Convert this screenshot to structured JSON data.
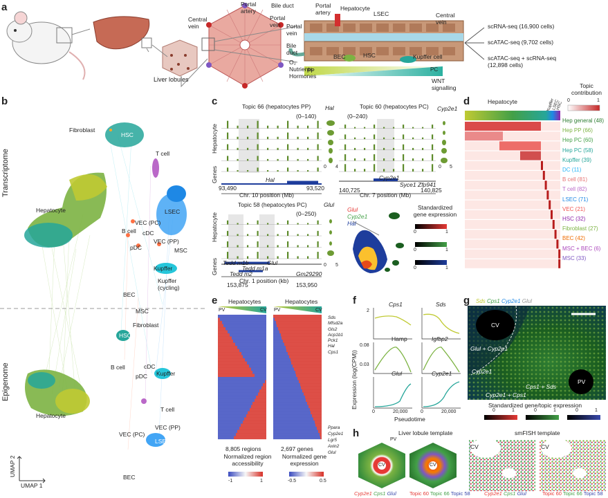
{
  "panels": {
    "a": "a",
    "b": "b",
    "c": "c",
    "d": "d",
    "e": "e",
    "f": "f",
    "g": "g",
    "h": "h"
  },
  "a": {
    "liver_lobules": "Liver lobules",
    "central_vein": "Central vein",
    "portal_artery": "Portal artery",
    "bile_duct": "Bile duct",
    "portal_vein": "Portal vein",
    "s_hepatocyte": "Hepatocyte",
    "s_portal_artery": "Portal artery",
    "s_lsec": "LSEC",
    "s_central_vein": "Central vein",
    "s_portal_vein": "Portal vein",
    "s_bile_duct": "Bile duct",
    "s_bec": "BEC",
    "s_hsc": "HSC",
    "s_kupffer": "Kupffer cell",
    "o2": "O₂",
    "nutrients": "Nutrients",
    "hormones": "Hormones",
    "wnt": "WNT signalling",
    "pp": "PP",
    "pc": "PC",
    "assays": [
      "scRNA-seq (16,900 cells)",
      "scATAC-seq (9,702 cells)",
      "scATAC-seq + scRNA-seq (12,898 cells)"
    ]
  },
  "b": {
    "transcriptome": "Transcriptome",
    "epigenome": "Epigenome",
    "umap1": "UMAP 1",
    "umap2": "UMAP 2",
    "labels_top": [
      "Fibroblast",
      "HSC",
      "T cell",
      "Hepatocyte",
      "LSEC",
      "VEC (PC)",
      "B cell",
      "cDC",
      "VEC (PP)",
      "pDC",
      "MSC",
      "Kupffer",
      "Kupffer (cycling)"
    ],
    "labels_bottom": [
      "BEC",
      "MSC",
      "Fibroblast",
      "HSC",
      "B cell",
      "cDC",
      "Kupffer",
      "pDC",
      "Hepatocyte",
      "T cell",
      "VEC (PP)",
      "VEC (PC)",
      "LSEC",
      "BEC"
    ]
  },
  "c": {
    "t66": "Topic 66 (hepatocytes PP)",
    "t60": "Topic 60 (hepatocytes PC)",
    "t58": "Topic 58 (hepatocytes PC)",
    "r66": "(0–140)",
    "r60": "(0–240)",
    "r58": "(0–250)",
    "g66": "Hal",
    "g60": "Cyp2e1",
    "g58": "Glul",
    "hep": "Hepatocyte",
    "genes": "Genes",
    "chr10": "Chr. 10 position (Mb)",
    "chr7": "Chr. 7 position (Mb)",
    "chr1": "Chr. 1 position (kb)",
    "ticks10": [
      "93,490",
      "93,520"
    ],
    "ticks7": [
      "140,725",
      "140,825"
    ],
    "ticks1": [
      "153,875",
      "153,950"
    ],
    "genes7": [
      "Cyp2e1",
      "Syce1",
      "Zfp941"
    ],
    "genes1": [
      "Tedd m1b",
      "Tedd m1a",
      "Glul",
      "Tedd m2",
      "Gm29290"
    ],
    "vio_ticks": [
      "0",
      "4",
      "0",
      "5",
      "0",
      "5"
    ],
    "legend_genes": [
      "Glul",
      "Cyp2e1",
      "Hal"
    ],
    "std_expr": "Standardized gene expression",
    "cb": [
      "0",
      "1",
      "0",
      "1",
      "0",
      "1"
    ]
  },
  "d": {
    "hepatocyte": "Hepatocyte",
    "topic_contribution": "Topic contribution",
    "cb": [
      "0",
      "1"
    ],
    "col_labels": [
      "Kupffer",
      "LSEC",
      "HSC"
    ],
    "rows": [
      {
        "label": "Hep general (48)",
        "color": "#2e7d32"
      },
      {
        "label": "Hep PP (66)",
        "color": "#7cb342"
      },
      {
        "label": "Hep PC (60)",
        "color": "#43a047"
      },
      {
        "label": "Hep PC (58)",
        "color": "#26a69a"
      },
      {
        "label": "Kupffer (39)",
        "color": "#26a69a"
      },
      {
        "label": "DC (11)",
        "color": "#29b6f6"
      },
      {
        "label": "B cell (81)",
        "color": "#e57373"
      },
      {
        "label": "T cell (82)",
        "color": "#ba68c8"
      },
      {
        "label": "LSEC (71)",
        "color": "#1e88e5"
      },
      {
        "label": "VEC (21)",
        "color": "#ef5350"
      },
      {
        "label": "HSC (32)",
        "color": "#8e24aa"
      },
      {
        "label": "Fibroblast (27)",
        "color": "#7cb342"
      },
      {
        "label": "BEC (42)",
        "color": "#ef6c00"
      },
      {
        "label": "MSC + BEC (6)",
        "color": "#ab47bc"
      },
      {
        "label": "MSC (33)",
        "color": "#7e57c2"
      }
    ]
  },
  "e": {
    "hep1": "Hepatocytes",
    "hep2": "Hepatocytes",
    "pv": "PV",
    "cv": "CV",
    "pv2": "PV",
    "cv2": "CV",
    "n1": "8,805 regions",
    "n2": "2,697 genes",
    "l1": "Normalized region accessibility",
    "l2": "Normalized gene expression",
    "cb1": [
      "-1",
      "1"
    ],
    "cb2": [
      "-0.5",
      "0.5"
    ],
    "genes_top": [
      "Sds",
      "Mfsd2a",
      "Gls2",
      "Acp1b1",
      "Pck1",
      "Hal",
      "Cps1"
    ],
    "genes_bottom": [
      "Ppara",
      "Cyp2e1",
      "Lgr5",
      "Axin2",
      "Glul"
    ]
  },
  "f": {
    "ylabel": "Expression (log(CPM))",
    "xlabel": "Pseudotime",
    "genes": [
      "Cps1",
      "Sds",
      "Hamp",
      "Igfbp2",
      "Glul",
      "Cyp2e1"
    ],
    "yt": [
      "2",
      "0.08",
      "0.03"
    ],
    "xt": [
      "0",
      "20,000",
      "0",
      "20,000"
    ]
  },
  "g": {
    "title_parts": [
      "Sds",
      "Cps1",
      "Cyp2e1",
      "Glul"
    ],
    "cv": "CV",
    "pv": "PV",
    "lbl1": "Glul + Cyp2e1",
    "lbl2": "Cyp2e1",
    "lbl3": "Cps1 + Sds",
    "lbl4": "Cyp2e1 + Cps1",
    "std": "Standardized gene/topic expression",
    "cb": [
      "0",
      "1",
      "0",
      "1",
      "0",
      "1"
    ]
  },
  "h": {
    "t1": "Liver lobule template",
    "t2": "smFISH template",
    "pv": "PV",
    "cv": "CV",
    "cv_left": "CV",
    "cv_right": "CV",
    "leg1": [
      "Cyp2e1",
      "Cps1",
      "Glul"
    ],
    "leg2": [
      "Topic 60",
      "Topic 66",
      "Topic 58"
    ],
    "leg3": [
      "Cyp2e1",
      "Cps1",
      "Glul"
    ],
    "leg4": [
      "Topic 60",
      "Topic 66",
      "Topic 58"
    ]
  }
}
